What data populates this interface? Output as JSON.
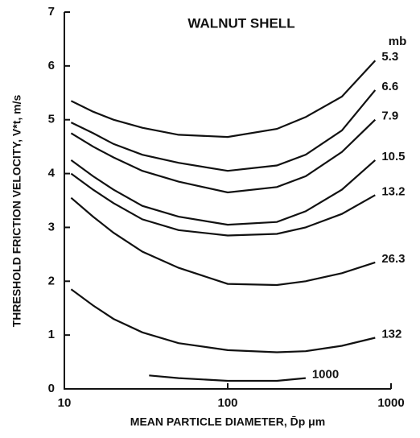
{
  "chart_data": {
    "type": "line",
    "title": "WALNUT SHELL",
    "x_label": "MEAN PARTICLE DIAMETER, D̄p μm",
    "y_label": "THRESHOLD FRICTION VELOCITY, V*t, m/s",
    "legend_title": "mb",
    "xscale": "log",
    "xlim": [
      10,
      1000
    ],
    "xticks": [
      10,
      100,
      1000
    ],
    "ylim": [
      0,
      7
    ],
    "yticks": [
      0,
      1,
      2,
      3,
      4,
      5,
      6,
      7
    ],
    "series": [
      {
        "name": "5.3",
        "color": "#111111",
        "x": [
          11,
          15,
          20,
          30,
          50,
          100,
          200,
          300,
          500,
          800
        ],
        "values": [
          5.35,
          5.15,
          5.0,
          4.85,
          4.72,
          4.68,
          4.83,
          5.05,
          5.43,
          6.1
        ]
      },
      {
        "name": "6.6",
        "color": "#111111",
        "x": [
          11,
          15,
          20,
          30,
          50,
          100,
          200,
          300,
          500,
          800
        ],
        "values": [
          4.95,
          4.75,
          4.55,
          4.35,
          4.2,
          4.05,
          4.15,
          4.35,
          4.8,
          5.55
        ]
      },
      {
        "name": "7.9",
        "color": "#111111",
        "x": [
          11,
          15,
          20,
          30,
          50,
          100,
          200,
          300,
          500,
          800
        ],
        "values": [
          4.75,
          4.5,
          4.3,
          4.05,
          3.85,
          3.65,
          3.75,
          3.95,
          4.4,
          5.0
        ]
      },
      {
        "name": "10.5",
        "color": "#111111",
        "x": [
          11,
          15,
          20,
          30,
          50,
          100,
          200,
          300,
          500,
          800
        ],
        "values": [
          4.25,
          3.95,
          3.7,
          3.4,
          3.2,
          3.05,
          3.1,
          3.3,
          3.7,
          4.25
        ]
      },
      {
        "name": "13.2",
        "color": "#111111",
        "x": [
          11,
          15,
          20,
          30,
          50,
          100,
          200,
          300,
          500,
          800
        ],
        "values": [
          4.0,
          3.7,
          3.45,
          3.15,
          2.95,
          2.85,
          2.88,
          3.0,
          3.25,
          3.6
        ]
      },
      {
        "name": "26.3",
        "color": "#111111",
        "x": [
          11,
          15,
          20,
          30,
          50,
          100,
          200,
          300,
          500,
          800
        ],
        "values": [
          3.55,
          3.2,
          2.9,
          2.55,
          2.25,
          1.95,
          1.93,
          2.0,
          2.15,
          2.35
        ]
      },
      {
        "name": "132",
        "color": "#111111",
        "x": [
          11,
          15,
          20,
          30,
          50,
          100,
          200,
          300,
          500,
          800
        ],
        "values": [
          1.85,
          1.55,
          1.3,
          1.05,
          0.85,
          0.72,
          0.68,
          0.7,
          0.8,
          0.95
        ]
      },
      {
        "name": "1000",
        "color": "#111111",
        "x": [
          33,
          50,
          100,
          200,
          300
        ],
        "values": [
          0.25,
          0.2,
          0.15,
          0.15,
          0.2
        ]
      }
    ]
  }
}
